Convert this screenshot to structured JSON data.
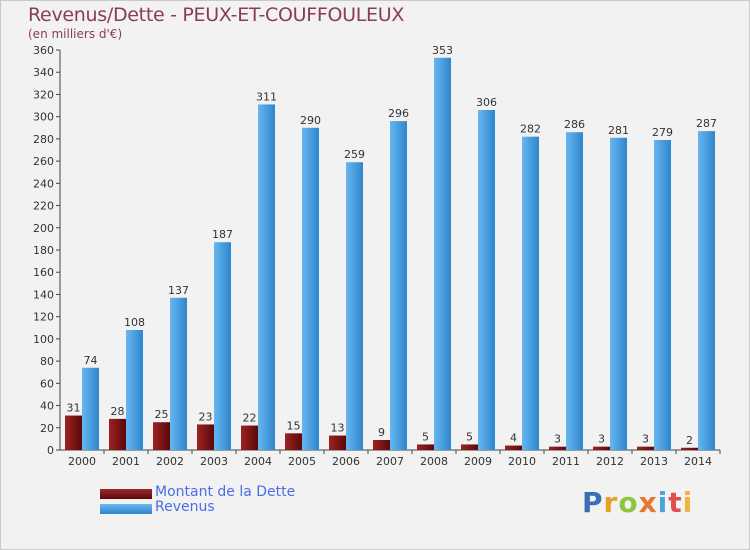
{
  "chart_data": {
    "type": "bar",
    "title": "Revenus/Dette - PEUX-ET-COUFFOULEUX",
    "subtitle": "(en milliers d'€)",
    "categories": [
      "2000",
      "2001",
      "2002",
      "2003",
      "2004",
      "2005",
      "2006",
      "2007",
      "2008",
      "2009",
      "2010",
      "2011",
      "2012",
      "2013",
      "2014"
    ],
    "series": [
      {
        "name": "Montant de la Dette",
        "color": "#7a0f12",
        "values": [
          31,
          28,
          25,
          23,
          22,
          15,
          13,
          9,
          5,
          5,
          4,
          3,
          3,
          3,
          2
        ]
      },
      {
        "name": "Revenus",
        "color": "#4fa3e6",
        "values": [
          74,
          108,
          137,
          187,
          311,
          290,
          259,
          296,
          353,
          306,
          282,
          286,
          281,
          279,
          287
        ]
      }
    ],
    "ylim": [
      0,
      360
    ],
    "ytick_step": 20,
    "grid": false,
    "legend": "bottom-left"
  },
  "logo": {
    "parts": [
      "P",
      "r",
      "o",
      "x",
      "i",
      "t",
      "i"
    ]
  }
}
